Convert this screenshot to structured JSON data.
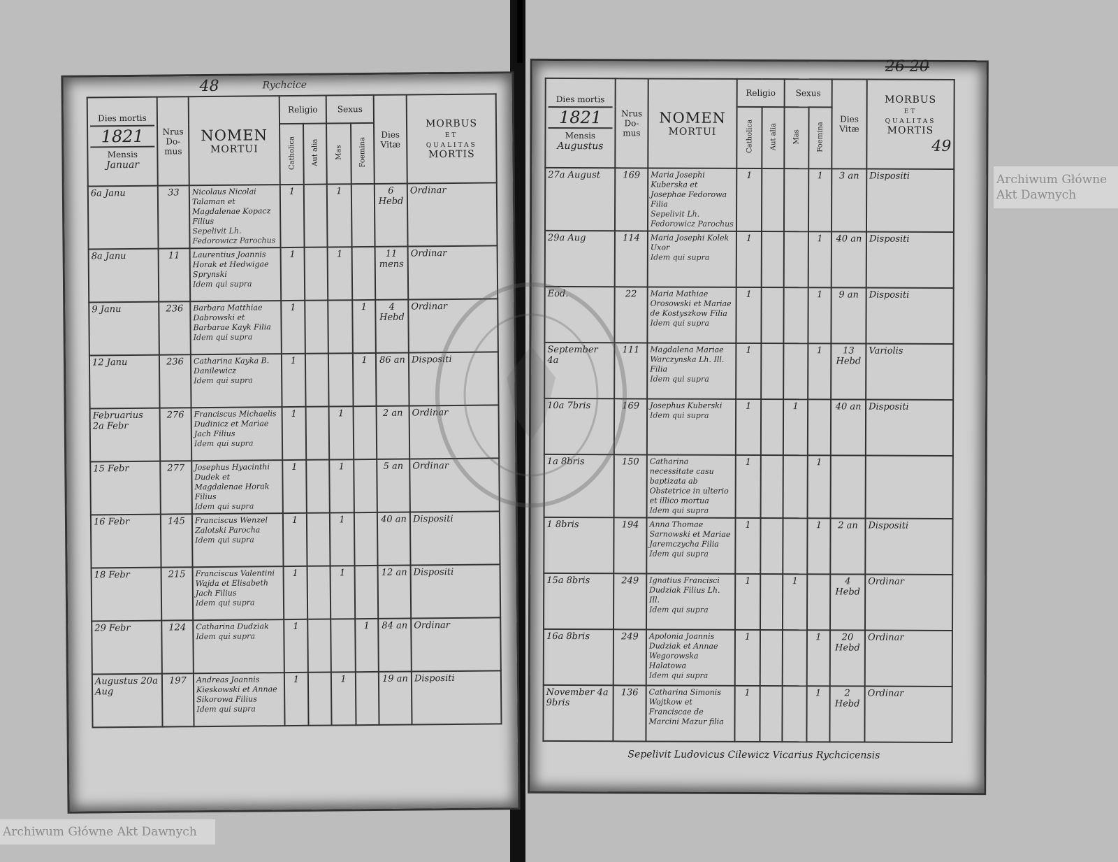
{
  "header_labels": {
    "dies_mortis": "Dies mortis",
    "mensis": "Mensis",
    "nrus": "Nrus",
    "domus_1": "Do-",
    "domus_2": "mus",
    "nomen": "NOMEN",
    "mortui": "MORTUI",
    "religio": "Religio",
    "sexus": "Sexus",
    "catholica": "Catholica",
    "aut_alia": "Aut alia",
    "mas": "Mas",
    "foemina": "Foemina",
    "dies": "Dies",
    "vitae": "Vitæ",
    "morbus": "MORBUS",
    "et": "ET",
    "qualitas": "QUALITAS",
    "mortis": "MORTIS"
  },
  "left_page": {
    "page_number": "48",
    "place": "Rychcice",
    "year": "1821",
    "month": "Januar",
    "rows": [
      {
        "date": "6a Janu",
        "domus": "33",
        "name": "Nicolaus Nicolai Talaman et Magdalenae Kopacz Filius",
        "cath": "1",
        "alia": "",
        "mas": "1",
        "foem": "",
        "vitae": "6 Hebd",
        "morbus": "Ordinar",
        "note": "Sepelivit Lh. Fedorowicz Parochus"
      },
      {
        "date": "8a Janu",
        "domus": "11",
        "name": "Laurentius Joannis Horak et Hedwigae Sprynski",
        "cath": "1",
        "alia": "",
        "mas": "1",
        "foem": "",
        "vitae": "11 mens",
        "morbus": "Ordinar",
        "note": "Idem qui supra"
      },
      {
        "date": "9 Janu",
        "domus": "236",
        "name": "Barbara Matthiae Dabrowski et Barbarae Kayk Filia",
        "cath": "1",
        "alia": "",
        "mas": "",
        "foem": "1",
        "vitae": "4 Hebd",
        "morbus": "Ordinar",
        "note": "Idem qui supra"
      },
      {
        "date": "12 Janu",
        "domus": "236",
        "name": "Catharina Kayka B. Danilewicz",
        "cath": "1",
        "alia": "",
        "mas": "",
        "foem": "1",
        "vitae": "86 an",
        "morbus": "Dispositi",
        "note": "Idem qui supra"
      },
      {
        "date": "Februarius 2a Febr",
        "domus": "276",
        "name": "Franciscus Michaelis Dudinicz et Mariae Jach Filius",
        "cath": "1",
        "alia": "",
        "mas": "1",
        "foem": "",
        "vitae": "2 an",
        "morbus": "Ordinar",
        "note": "Idem qui supra"
      },
      {
        "date": "15 Febr",
        "domus": "277",
        "name": "Josephus Hyacinthi Dudek et Magdalenae Horak Filius",
        "cath": "1",
        "alia": "",
        "mas": "1",
        "foem": "",
        "vitae": "5 an",
        "morbus": "Ordinar",
        "note": "Idem qui supra"
      },
      {
        "date": "16 Febr",
        "domus": "145",
        "name": "Franciscus Wenzel Zalotski Parocha",
        "cath": "1",
        "alia": "",
        "mas": "1",
        "foem": "",
        "vitae": "40 an",
        "morbus": "Dispositi",
        "note": "Idem qui supra"
      },
      {
        "date": "18 Febr",
        "domus": "215",
        "name": "Franciscus Valentini Wajda et Elisabeth Jach Filius",
        "cath": "1",
        "alia": "",
        "mas": "1",
        "foem": "",
        "vitae": "12 an",
        "morbus": "Dispositi",
        "note": "Idem qui supra"
      },
      {
        "date": "29 Febr",
        "domus": "124",
        "name": "Catharina Dudziak",
        "cath": "1",
        "alia": "",
        "mas": "",
        "foem": "1",
        "vitae": "84 an",
        "morbus": "Ordinar",
        "note": "Idem qui supra"
      },
      {
        "date": "Augustus 20a Aug",
        "domus": "197",
        "name": "Andreas Joannis Kieskowski et Annae Sikorowa Filius",
        "cath": "1",
        "alia": "",
        "mas": "1",
        "foem": "",
        "vitae": "19 an",
        "morbus": "Dispositi",
        "note": "Idem qui supra"
      }
    ]
  },
  "right_page": {
    "page_number_old": "26",
    "page_number_crossed": "20",
    "page_number": "49",
    "year": "1821",
    "month": "Augustus",
    "rows": [
      {
        "date": "27a August",
        "domus": "169",
        "name": "Maria Josephi Kuberska et Josephae Fedorowa Filia",
        "cath": "1",
        "alia": "",
        "mas": "",
        "foem": "1",
        "vitae": "3 an",
        "morbus": "Dispositi",
        "note": "Sepelivit Lh. Fedorowicz Parochus"
      },
      {
        "date": "29a Aug",
        "domus": "114",
        "name": "Maria Josephi Kolek Uxor",
        "cath": "1",
        "alia": "",
        "mas": "",
        "foem": "1",
        "vitae": "40 an",
        "morbus": "Dispositi",
        "note": "Idem qui supra"
      },
      {
        "date": "Eod.",
        "domus": "22",
        "name": "Maria Mathiae Orosowski et Mariae de Kostyszkow Filia",
        "cath": "1",
        "alia": "",
        "mas": "",
        "foem": "1",
        "vitae": "9 an",
        "morbus": "Dispositi",
        "note": "Idem qui supra"
      },
      {
        "date": "September 4a",
        "domus": "111",
        "name": "Magdalena Mariae Warczynska Lh. Ill. Filia",
        "cath": "1",
        "alia": "",
        "mas": "",
        "foem": "1",
        "vitae": "13 Hebd",
        "morbus": "Variolis",
        "note": "Idem qui supra"
      },
      {
        "date": "10a 7bris",
        "domus": "169",
        "name": "Josephus Kuberski",
        "cath": "1",
        "alia": "",
        "mas": "1",
        "foem": "",
        "vitae": "40 an",
        "morbus": "Dispositi",
        "note": "Idem qui supra"
      },
      {
        "date": "1a 8bris",
        "domus": "150",
        "name": "Catharina necessitate casu baptizata ab Obstetrice in ulterio et illico mortua",
        "cath": "1",
        "alia": "",
        "mas": "",
        "foem": "1",
        "vitae": "",
        "morbus": "",
        "note": "Idem qui supra"
      },
      {
        "date": "1 8bris",
        "domus": "194",
        "name": "Anna Thomae Sarnowski et Mariae Jaremczycha Filia",
        "cath": "1",
        "alia": "",
        "mas": "",
        "foem": "1",
        "vitae": "2 an",
        "morbus": "Dispositi",
        "note": "Idem qui supra"
      },
      {
        "date": "15a 8bris",
        "domus": "249",
        "name": "Ignatius Francisci Dudziak Filius Lh. Ill.",
        "cath": "1",
        "alia": "",
        "mas": "1",
        "foem": "",
        "vitae": "4 Hebd",
        "morbus": "Ordinar",
        "note": "Idem qui supra"
      },
      {
        "date": "16a 8bris",
        "domus": "249",
        "name": "Apolonia Joannis Dudziak et Annae Wegorowska Halatowa",
        "cath": "1",
        "alia": "",
        "mas": "",
        "foem": "1",
        "vitae": "20 Hebd",
        "morbus": "Ordinar",
        "note": "Idem qui supra"
      },
      {
        "date": "November 4a 9bris",
        "domus": "136",
        "name": "Catharina Simonis Wojtkow et Franciscae de Marcini Mazur filia",
        "cath": "1",
        "alia": "",
        "mas": "",
        "foem": "1",
        "vitae": "2 Hebd",
        "morbus": "Ordinar",
        "note": ""
      }
    ],
    "closing_note": "Sepelivit Ludovicus Cilewicz Vicarius Rychcicensis"
  },
  "watermark": "Archiwum Główne Akt Dawnych",
  "stamp_text": "ARCHIWUM GŁÓWNE AKT DAWNYCH"
}
